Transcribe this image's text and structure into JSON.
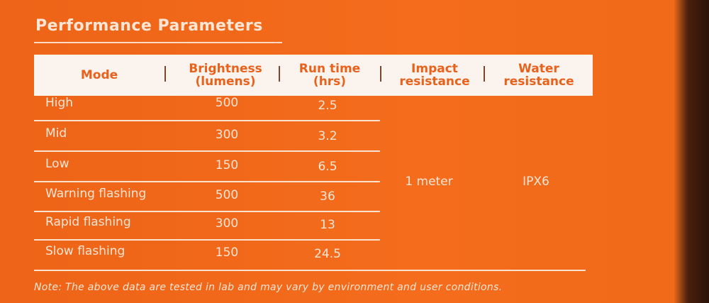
{
  "title": "Performance Parameters",
  "table": {
    "header": [
      "Mode",
      "Brightness (lumens)",
      "Run time (hrs)",
      "Impact resistance",
      "Water resistance"
    ],
    "rows": [
      [
        "High",
        500,
        2.5
      ],
      [
        "Mid",
        300,
        3.2
      ],
      [
        "Low",
        150,
        6.5
      ],
      [
        "Warning flashing",
        500,
        36
      ],
      [
        "Rapid flashing",
        300,
        13
      ],
      [
        "Slow flashing",
        150,
        24.5
      ]
    ],
    "impact_resistance": "1 meter",
    "water_resistance": "IPX6"
  },
  "note": "Note: The above data are tested in lab and may vary by environment and user conditions."
}
